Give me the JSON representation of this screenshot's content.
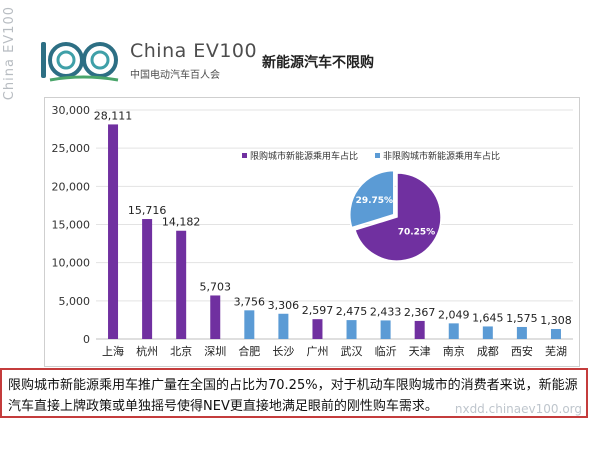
{
  "corner_logo_text": "China EV100",
  "header": {
    "brand_name": "China EV100",
    "brand_sub": "中国电动汽车百人会",
    "title": "新能源汽车不限购"
  },
  "chart_data": {
    "type": "bar",
    "categories": [
      "上海",
      "杭州",
      "北京",
      "深圳",
      "合肥",
      "长沙",
      "广州",
      "武汉",
      "临沂",
      "天津",
      "南京",
      "成都",
      "西安",
      "芜湖"
    ],
    "values": [
      28111,
      15716,
      14182,
      5703,
      3756,
      3306,
      2597,
      2475,
      2433,
      2367,
      2049,
      1645,
      1575,
      1308
    ],
    "value_labels": [
      "28,111",
      "15,716",
      "14,182",
      "5,703",
      "3,756",
      "3,306",
      "2,597",
      "2,475",
      "2,433",
      "2,367",
      "2,049",
      "1,645",
      "1,575",
      "1,308"
    ],
    "restricted": [
      true,
      true,
      true,
      true,
      false,
      false,
      true,
      false,
      false,
      true,
      false,
      false,
      false,
      false
    ],
    "ylim": [
      0,
      30000
    ],
    "yticks": [
      "0",
      "5,000",
      "10,000",
      "15,000",
      "20,000",
      "25,000",
      "30,000"
    ],
    "colors": {
      "restricted": "#7030a0",
      "non_restricted": "#5b9bd5"
    },
    "pie": {
      "type": "pie",
      "legend": [
        "限购城市新能源乘用车占比",
        "非限购城市新能源乘用车占比"
      ],
      "values": [
        70.25,
        29.75
      ],
      "labels": [
        "70.25%",
        "29.75%"
      ],
      "colors": [
        "#7030a0",
        "#5b9bd5"
      ],
      "legend_position": "top"
    }
  },
  "caption": "限购城市新能源乘用车推广量在全国的占比为70.25%，对于机动车限购城市的消费者来说，新能源汽车直接上牌政策或单独摇号使得NEV更直接地满足眼前的刚性购车需求。",
  "watermark": "nxdd.chinaev100.org"
}
